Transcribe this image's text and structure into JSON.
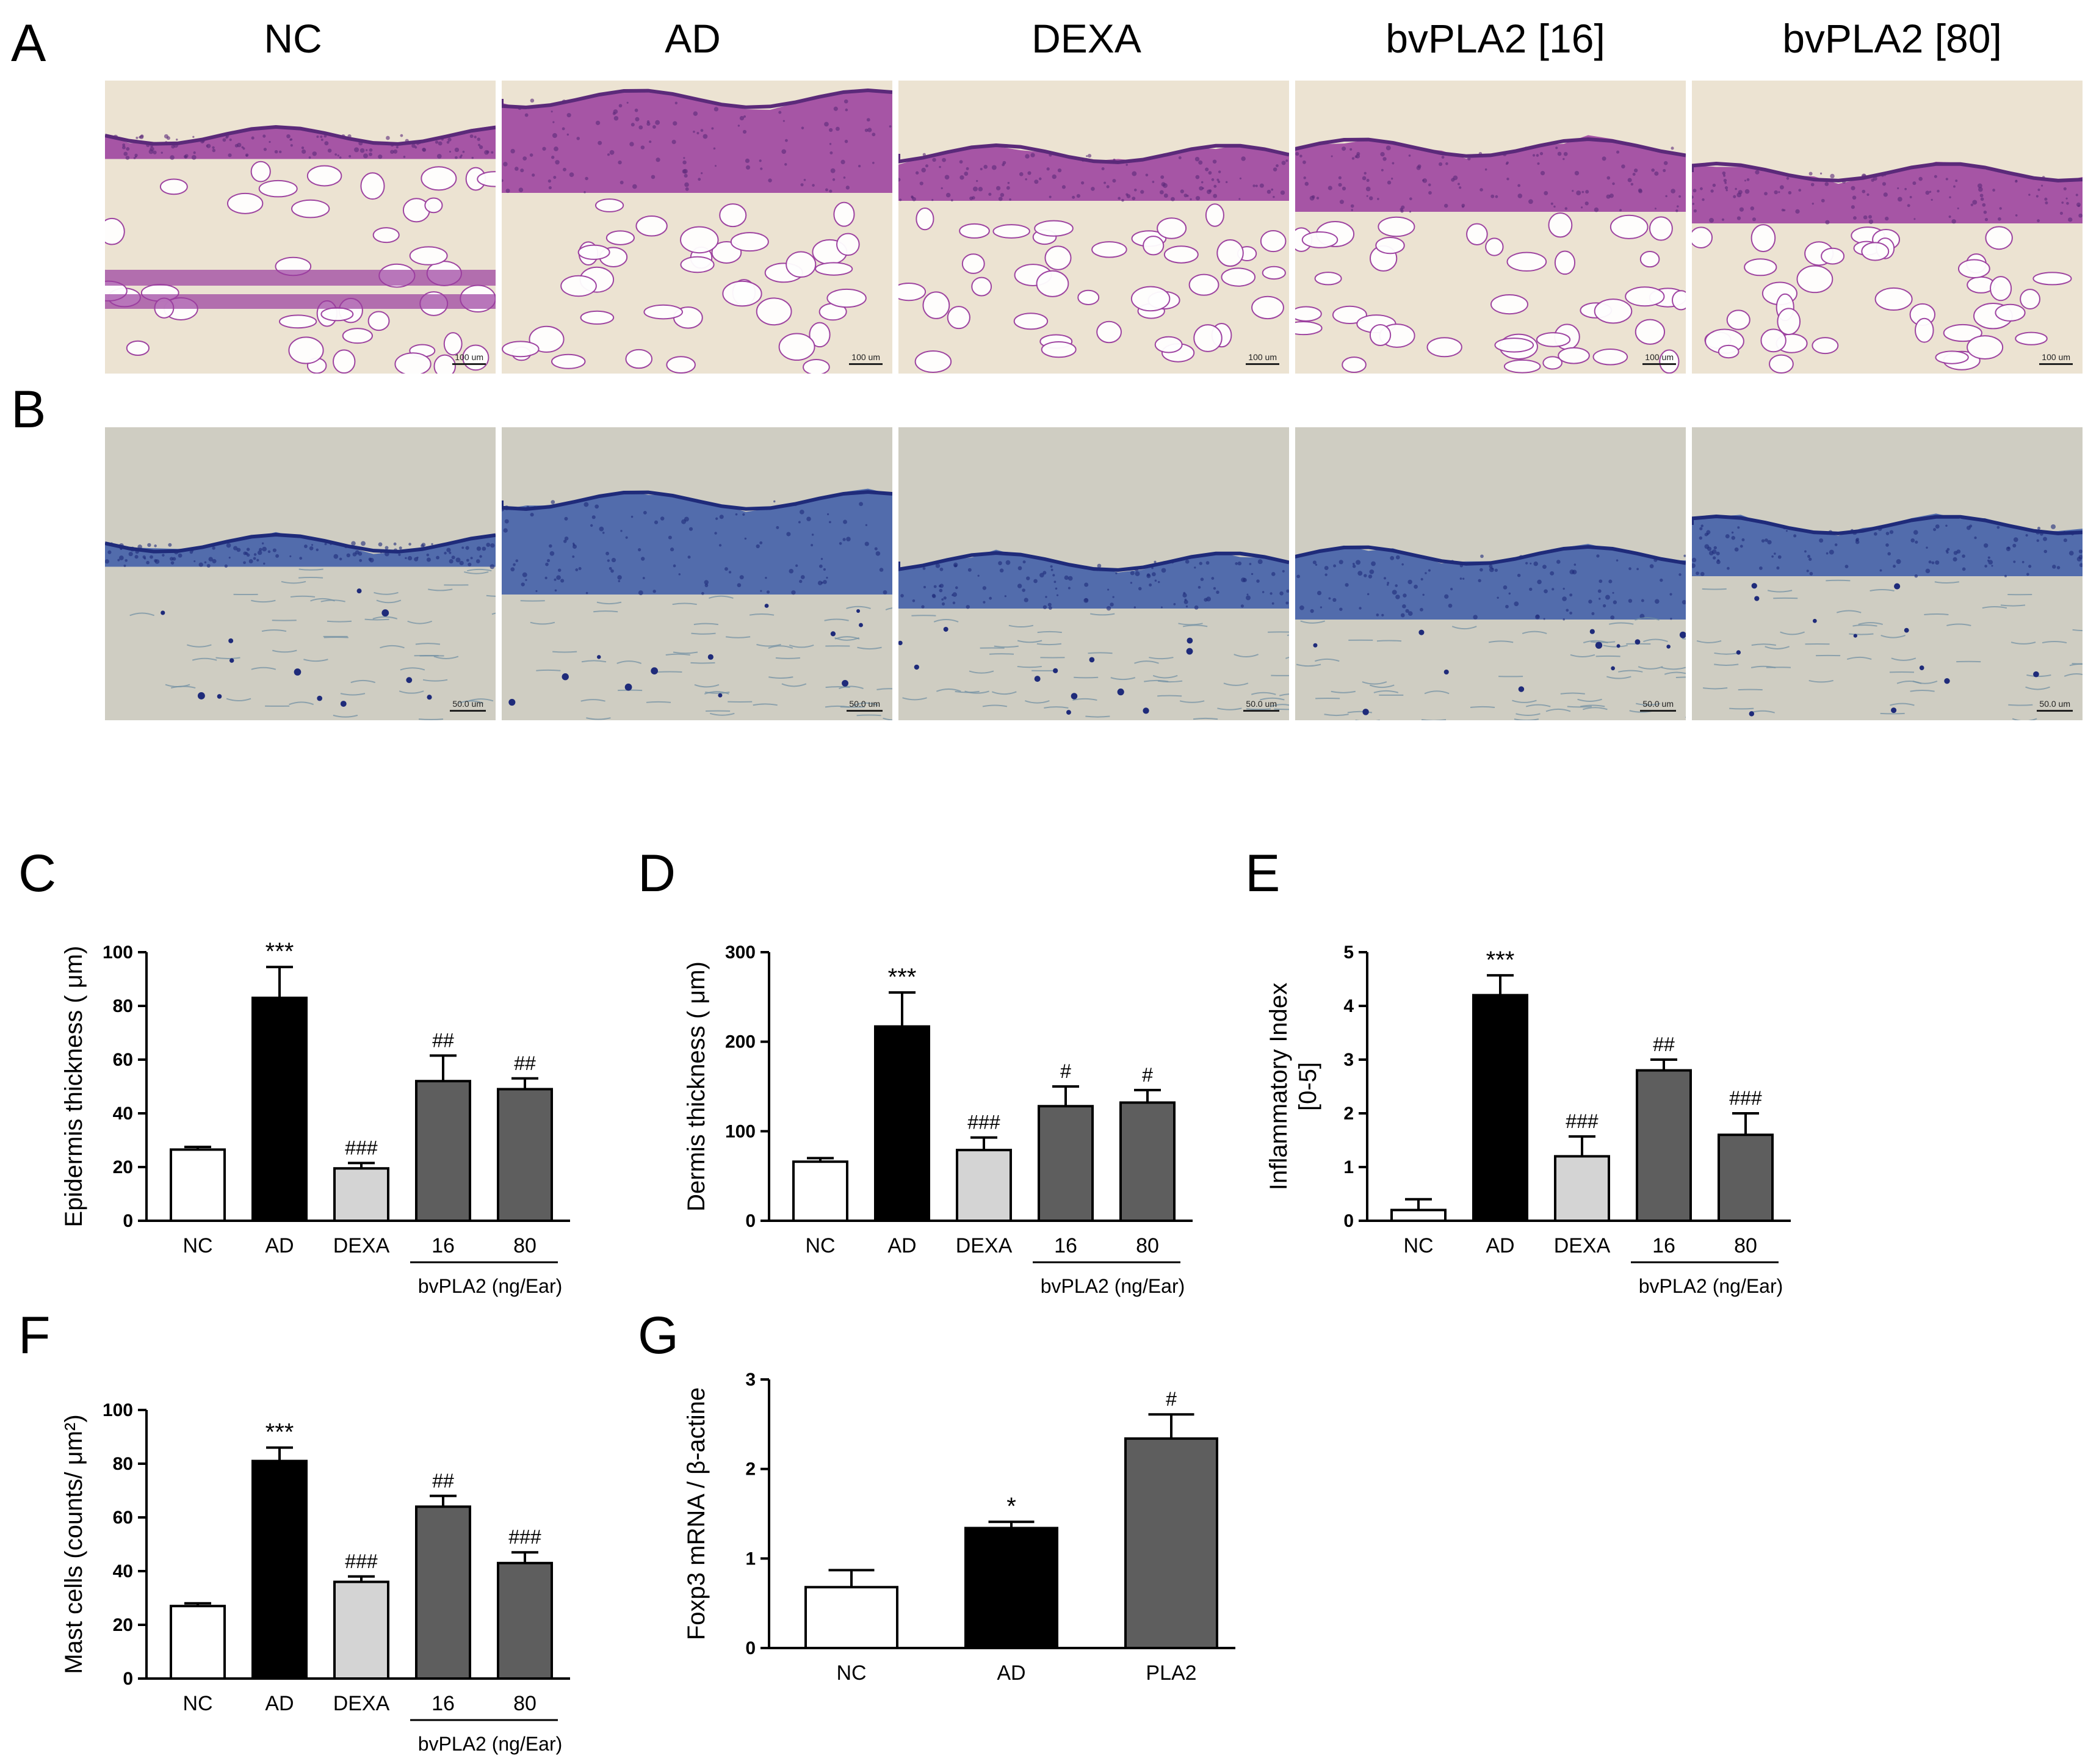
{
  "panel_letters": [
    "A",
    "B",
    "C",
    "D",
    "E",
    "F",
    "G"
  ],
  "columns": [
    "NC",
    "AD",
    "DEXA",
    "bvPLA2 [16]",
    "bvPLA2 [80]"
  ],
  "scale_bars": {
    "he": "100 um",
    "tb": "50.0 um"
  },
  "colors": {
    "white_bar": "#ffffff",
    "black_bar": "#000000",
    "light_bar": "#d4d4d4",
    "dark_bar": "#5e5e5e",
    "he_bg": "#ece3d2",
    "he_stain": "#9a3c9e",
    "he_deep": "#5b2a7a",
    "tb_bg": "#cfcdc2",
    "tb_stain": "#3c5aa8",
    "tb_deep": "#1f2b7a"
  },
  "chart_data": [
    {
      "panel": "C",
      "type": "bar",
      "ylabel": "Epidermis thickness ( μm)",
      "ylim": [
        0,
        100
      ],
      "yticks": [
        0,
        20,
        40,
        60,
        80,
        100
      ],
      "categories": [
        "NC",
        "AD",
        "DEXA",
        "16",
        "80"
      ],
      "values": [
        26.5,
        83,
        19.5,
        52,
        49
      ],
      "errors": [
        1,
        11.5,
        2,
        9.5,
        4
      ],
      "annotations": [
        "",
        "***",
        "###",
        "##",
        "##"
      ],
      "group_label": "bvPLA2 (ng/Ear)",
      "group_span": [
        3,
        4
      ],
      "fills": [
        "#ffffff",
        "#000000",
        "#d4d4d4",
        "#5e5e5e",
        "#5e5e5e"
      ]
    },
    {
      "panel": "D",
      "type": "bar",
      "ylabel": "Dermis thickness ( μm)",
      "ylim": [
        0,
        300
      ],
      "yticks": [
        0,
        100,
        200,
        300
      ],
      "categories": [
        "NC",
        "AD",
        "DEXA",
        "16",
        "80"
      ],
      "values": [
        66,
        217,
        79,
        128,
        132
      ],
      "errors": [
        4,
        38,
        14,
        22,
        14
      ],
      "annotations": [
        "",
        "***",
        "###",
        "#",
        "#"
      ],
      "group_label": "bvPLA2 (ng/Ear)",
      "group_span": [
        3,
        4
      ],
      "fills": [
        "#ffffff",
        "#000000",
        "#d4d4d4",
        "#5e5e5e",
        "#5e5e5e"
      ]
    },
    {
      "panel": "E",
      "type": "bar",
      "ylabel": "Inflammatory Index",
      "ylabel2": "[0-5]",
      "ylim": [
        0,
        5
      ],
      "yticks": [
        0,
        1,
        2,
        3,
        4,
        5
      ],
      "categories": [
        "NC",
        "AD",
        "DEXA",
        "16",
        "80"
      ],
      "values": [
        0.2,
        4.2,
        1.2,
        2.8,
        1.6
      ],
      "errors": [
        0.2,
        0.37,
        0.37,
        0.2,
        0.4
      ],
      "annotations": [
        "",
        "***",
        "###",
        "##",
        "###"
      ],
      "group_label": "bvPLA2 (ng/Ear)",
      "group_span": [
        3,
        4
      ],
      "fills": [
        "#ffffff",
        "#000000",
        "#d4d4d4",
        "#5e5e5e",
        "#5e5e5e"
      ]
    },
    {
      "panel": "F",
      "type": "bar",
      "ylabel": "Mast cells (counts/ μm²)",
      "ylim": [
        0,
        100
      ],
      "yticks": [
        0,
        20,
        40,
        60,
        80,
        100
      ],
      "categories": [
        "NC",
        "AD",
        "DEXA",
        "16",
        "80"
      ],
      "values": [
        27,
        81,
        36,
        64,
        43
      ],
      "errors": [
        1,
        5,
        2,
        4,
        4
      ],
      "annotations": [
        "",
        "***",
        "###",
        "##",
        "###"
      ],
      "group_label": "bvPLA2 (ng/Ear)",
      "group_span": [
        3,
        4
      ],
      "fills": [
        "#ffffff",
        "#000000",
        "#d4d4d4",
        "#5e5e5e",
        "#5e5e5e"
      ]
    },
    {
      "panel": "G",
      "type": "bar",
      "ylabel": "Foxp3 mRNA / β-actine",
      "ylim": [
        0,
        3
      ],
      "yticks": [
        0,
        1,
        2,
        3
      ],
      "categories": [
        "NC",
        "AD",
        "PLA2"
      ],
      "values": [
        0.68,
        1.34,
        2.34
      ],
      "errors": [
        0.19,
        0.07,
        0.27
      ],
      "annotations": [
        "",
        "*",
        "#"
      ],
      "group_label": "",
      "group_span": null,
      "fills": [
        "#ffffff",
        "#000000",
        "#5e5e5e"
      ]
    }
  ]
}
